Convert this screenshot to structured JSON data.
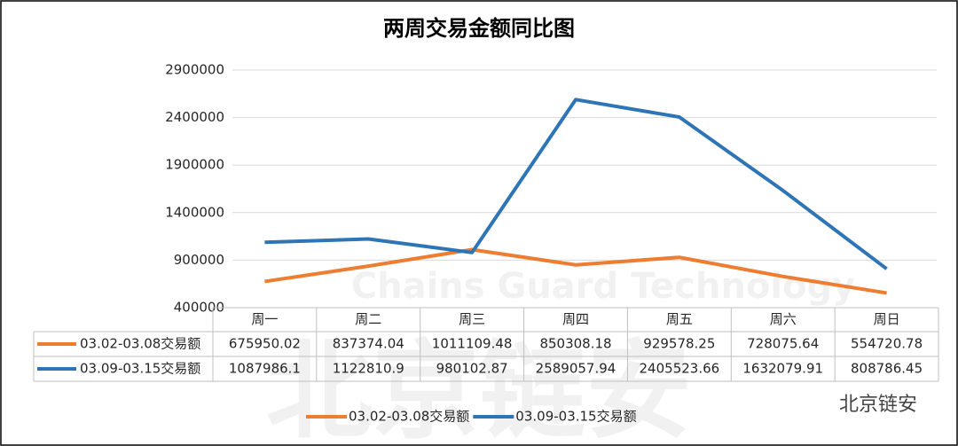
{
  "chart_data": {
    "type": "line",
    "title": "两周交易金额同比图",
    "categories": [
      "周一",
      "周二",
      "周三",
      "周四",
      "周五",
      "周六",
      "周日"
    ],
    "series": [
      {
        "name": "03.02-03.08交易额",
        "color": "#ED7D31",
        "values": [
          675950.02,
          837374.04,
          1011109.48,
          850308.18,
          929578.25,
          728075.64,
          554720.78
        ]
      },
      {
        "name": "03.09-03.15交易额",
        "color": "#2E75B6",
        "values": [
          1087986.1,
          1122810.9,
          980102.87,
          2589057.94,
          2405523.66,
          1632079.91,
          808786.45
        ]
      }
    ],
    "ylim": [
      400000,
      2900000
    ],
    "yticks": [
      400000,
      900000,
      1400000,
      1900000,
      2400000,
      2900000
    ],
    "grid": true,
    "data_table": true,
    "legend": "bottom"
  },
  "watermark": {
    "title": "北京链安",
    "subtitle": "Chains Guard Technology"
  },
  "brand": "北京链安"
}
